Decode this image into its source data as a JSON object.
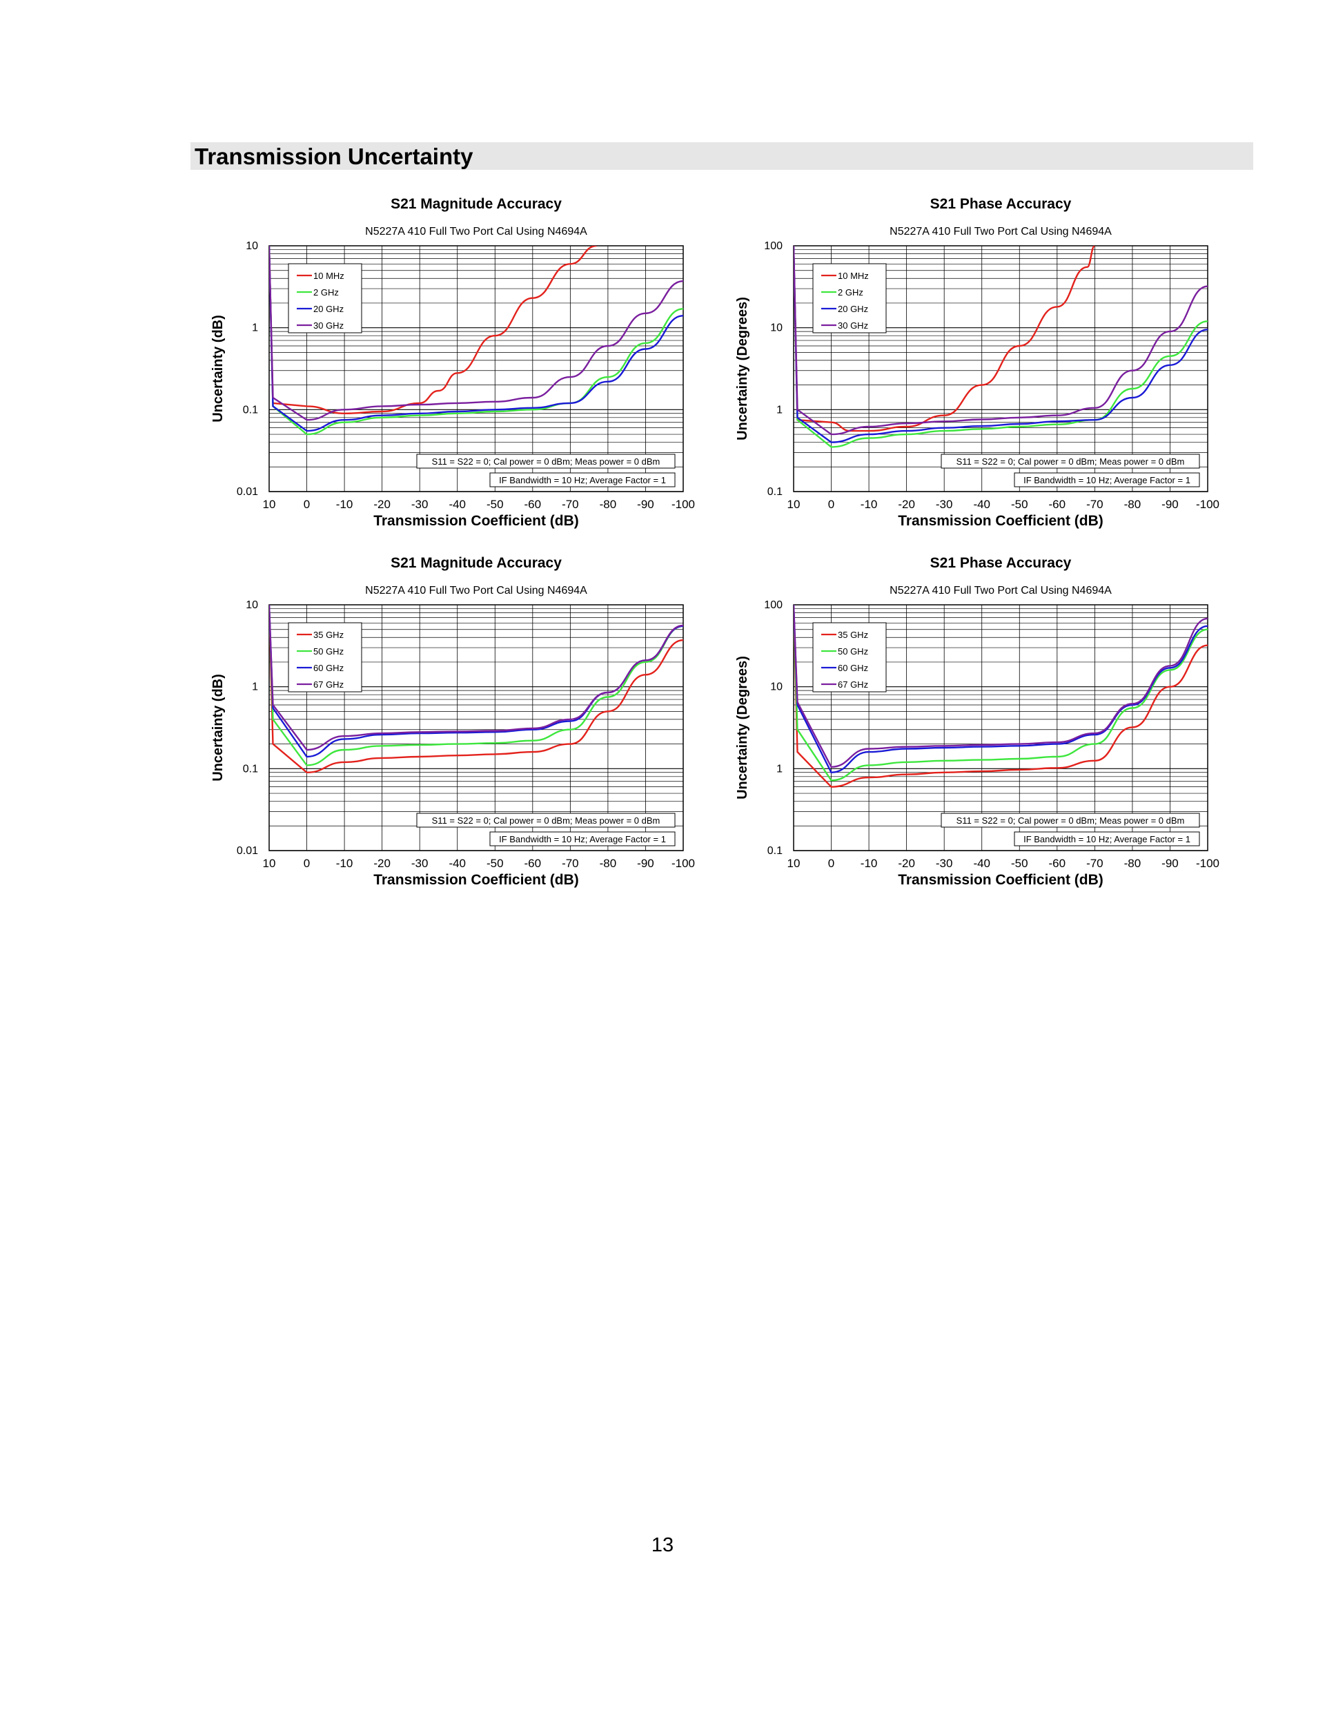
{
  "page": {
    "section_title": "Transmission Uncertainty",
    "page_number": "13"
  },
  "colors": {
    "red": "#e3221c",
    "green": "#3ee63e",
    "blue": "#1a1ad6",
    "purple": "#7a1f9e",
    "header_bg": "#e6e6e6",
    "grid": "#000000"
  },
  "chart_data": [
    {
      "type": "line",
      "title": "S21 Magnitude Accuracy",
      "subtitle": "N5227A 410 Full Two Port Cal Using N4694A",
      "xlabel": "Transmission Coefficient (dB)",
      "ylabel": "Uncertainty (dB)",
      "y_scale": "log",
      "xlim": [
        10,
        -100
      ],
      "ylim": [
        0.01,
        10
      ],
      "x_ticks": [
        "10",
        "0",
        "-10",
        "-20",
        "-30",
        "-40",
        "-50",
        "-60",
        "-70",
        "-80",
        "-90",
        "-100"
      ],
      "y_ticks": [
        "0.01",
        "0.1",
        "1",
        "10"
      ],
      "grid": true,
      "legend_position": "top-left",
      "notes": [
        "S11 = S22 = 0; Cal power = 0 dBm; Meas power = 0 dBm",
        "IF Bandwidth = 10 Hz; Average Factor = 1"
      ],
      "series": [
        {
          "name": "10 MHz",
          "color": "red",
          "x": [
            10,
            9,
            0,
            -10,
            -20,
            -30,
            -35,
            -40,
            -50,
            -60,
            -70,
            -77
          ],
          "y": [
            10,
            0.12,
            0.11,
            0.09,
            0.095,
            0.12,
            0.17,
            0.28,
            0.8,
            2.3,
            6.0,
            10
          ]
        },
        {
          "name": "2 GHz",
          "color": "green",
          "x": [
            10,
            9,
            0,
            -10,
            -20,
            -30,
            -40,
            -50,
            -60,
            -70,
            -80,
            -90,
            -100
          ],
          "y": [
            10,
            0.11,
            0.05,
            0.07,
            0.08,
            0.085,
            0.09,
            0.095,
            0.1,
            0.12,
            0.25,
            0.65,
            1.7
          ]
        },
        {
          "name": "20 GHz",
          "color": "blue",
          "x": [
            10,
            9,
            0,
            -10,
            -20,
            -30,
            -40,
            -50,
            -60,
            -70,
            -80,
            -90,
            -100
          ],
          "y": [
            10,
            0.11,
            0.055,
            0.075,
            0.085,
            0.09,
            0.095,
            0.1,
            0.105,
            0.12,
            0.22,
            0.55,
            1.4
          ]
        },
        {
          "name": "30 GHz",
          "color": "purple",
          "x": [
            10,
            9,
            0,
            -10,
            -20,
            -30,
            -40,
            -50,
            -60,
            -70,
            -80,
            -90,
            -100
          ],
          "y": [
            10,
            0.14,
            0.075,
            0.1,
            0.11,
            0.115,
            0.12,
            0.125,
            0.14,
            0.25,
            0.6,
            1.5,
            3.7
          ]
        }
      ]
    },
    {
      "type": "line",
      "title": "S21 Phase Accuracy",
      "subtitle": "N5227A 410 Full Two Port Cal Using N4694A",
      "xlabel": "Transmission Coefficient (dB)",
      "ylabel": "Uncertainty (Degrees)",
      "y_scale": "log",
      "xlim": [
        10,
        -100
      ],
      "ylim": [
        0.1,
        100
      ],
      "x_ticks": [
        "10",
        "0",
        "-10",
        "-20",
        "-30",
        "-40",
        "-50",
        "-60",
        "-70",
        "-80",
        "-90",
        "-100"
      ],
      "y_ticks": [
        "0.1",
        "1",
        "10",
        "100"
      ],
      "grid": true,
      "legend_position": "top-left",
      "notes": [
        "S11 = S22 = 0; Cal power = 0 dBm; Meas power = 0 dBm",
        "IF Bandwidth = 10 Hz; Average Factor = 1"
      ],
      "series": [
        {
          "name": "10 MHz",
          "color": "red",
          "x": [
            10,
            9,
            0,
            -5,
            -10,
            -20,
            -30,
            -40,
            -50,
            -60,
            -68,
            -70
          ],
          "y": [
            100,
            0.75,
            0.7,
            0.55,
            0.55,
            0.62,
            0.85,
            2.0,
            6.0,
            18,
            55,
            100
          ]
        },
        {
          "name": "2 GHz",
          "color": "green",
          "x": [
            10,
            9,
            0,
            -10,
            -20,
            -30,
            -40,
            -50,
            -60,
            -70,
            -80,
            -90,
            -100
          ],
          "y": [
            100,
            0.75,
            0.35,
            0.45,
            0.5,
            0.55,
            0.58,
            0.62,
            0.66,
            0.75,
            1.8,
            4.5,
            12
          ]
        },
        {
          "name": "20 GHz",
          "color": "blue",
          "x": [
            10,
            9,
            0,
            -10,
            -20,
            -30,
            -40,
            -50,
            -60,
            -70,
            -80,
            -90,
            -100
          ],
          "y": [
            100,
            0.8,
            0.4,
            0.5,
            0.55,
            0.6,
            0.63,
            0.67,
            0.72,
            0.75,
            1.4,
            3.5,
            9.5
          ]
        },
        {
          "name": "30 GHz",
          "color": "purple",
          "x": [
            10,
            9,
            0,
            -10,
            -20,
            -30,
            -40,
            -50,
            -60,
            -70,
            -80,
            -90,
            -100
          ],
          "y": [
            100,
            1.0,
            0.5,
            0.62,
            0.68,
            0.72,
            0.76,
            0.8,
            0.85,
            1.05,
            3.0,
            9.0,
            32
          ]
        }
      ]
    },
    {
      "type": "line",
      "title": "S21 Magnitude Accuracy",
      "subtitle": "N5227A 410 Full Two Port Cal Using N4694A",
      "xlabel": "Transmission Coefficient (dB)",
      "ylabel": "Uncertainty (dB)",
      "y_scale": "log",
      "xlim": [
        10,
        -100
      ],
      "ylim": [
        0.01,
        10
      ],
      "x_ticks": [
        "10",
        "0",
        "-10",
        "-20",
        "-30",
        "-40",
        "-50",
        "-60",
        "-70",
        "-80",
        "-90",
        "-100"
      ],
      "y_ticks": [
        "0.01",
        "0.1",
        "1",
        "10"
      ],
      "grid": true,
      "legend_position": "top-left",
      "notes": [
        "S11 = S22 = 0; Cal power = 0 dBm; Meas power = 0 dBm",
        "IF Bandwidth = 10 Hz; Average Factor = 1"
      ],
      "series": [
        {
          "name": "35 GHz",
          "color": "red",
          "x": [
            10,
            9,
            0,
            -10,
            -20,
            -30,
            -40,
            -50,
            -60,
            -70,
            -80,
            -90,
            -100
          ],
          "y": [
            10,
            0.2,
            0.09,
            0.12,
            0.135,
            0.14,
            0.145,
            0.15,
            0.16,
            0.2,
            0.5,
            1.4,
            3.7
          ]
        },
        {
          "name": "50 GHz",
          "color": "green",
          "x": [
            10,
            9,
            0,
            -10,
            -20,
            -30,
            -40,
            -50,
            -60,
            -70,
            -80,
            -90,
            -100
          ],
          "y": [
            10,
            0.4,
            0.11,
            0.17,
            0.19,
            0.195,
            0.2,
            0.205,
            0.22,
            0.3,
            0.75,
            2.0,
            5.5
          ]
        },
        {
          "name": "60 GHz",
          "color": "blue",
          "x": [
            10,
            9,
            0,
            -10,
            -20,
            -30,
            -40,
            -50,
            -60,
            -70,
            -80,
            -90,
            -100
          ],
          "y": [
            10,
            0.55,
            0.14,
            0.23,
            0.26,
            0.27,
            0.275,
            0.28,
            0.3,
            0.38,
            0.85,
            2.1,
            5.5
          ]
        },
        {
          "name": "67 GHz",
          "color": "purple",
          "x": [
            10,
            9,
            0,
            -10,
            -20,
            -30,
            -40,
            -50,
            -60,
            -70,
            -80,
            -90,
            -100
          ],
          "y": [
            10,
            0.6,
            0.17,
            0.25,
            0.27,
            0.28,
            0.285,
            0.29,
            0.31,
            0.4,
            0.85,
            2.1,
            5.6
          ]
        }
      ]
    },
    {
      "type": "line",
      "title": "S21 Phase Accuracy",
      "subtitle": "N5227A 410 Full Two Port Cal Using N4694A",
      "xlabel": "Transmission Coefficient (dB)",
      "ylabel": "Uncertainty (Degrees)",
      "y_scale": "log",
      "xlim": [
        10,
        -100
      ],
      "ylim": [
        0.1,
        100
      ],
      "x_ticks": [
        "10",
        "0",
        "-10",
        "-20",
        "-30",
        "-40",
        "-50",
        "-60",
        "-70",
        "-80",
        "-90",
        "-100"
      ],
      "y_ticks": [
        "0.1",
        "1",
        "10",
        "100"
      ],
      "grid": true,
      "legend_position": "top-left",
      "notes": [
        "S11 = S22 = 0; Cal power = 0 dBm; Meas power = 0 dBm",
        "IF Bandwidth = 10 Hz; Average Factor = 1"
      ],
      "series": [
        {
          "name": "35 GHz",
          "color": "red",
          "x": [
            10,
            9,
            0,
            -10,
            -20,
            -30,
            -40,
            -50,
            -60,
            -70,
            -80,
            -90,
            -100
          ],
          "y": [
            100,
            1.6,
            0.6,
            0.78,
            0.85,
            0.9,
            0.93,
            0.97,
            1.02,
            1.25,
            3.2,
            10,
            32
          ]
        },
        {
          "name": "50 GHz",
          "color": "green",
          "x": [
            10,
            9,
            0,
            -10,
            -20,
            -30,
            -40,
            -50,
            -60,
            -70,
            -80,
            -90,
            -100
          ],
          "y": [
            100,
            3.0,
            0.72,
            1.1,
            1.2,
            1.25,
            1.28,
            1.32,
            1.4,
            2.0,
            5.5,
            16,
            50
          ]
        },
        {
          "name": "60 GHz",
          "color": "blue",
          "x": [
            10,
            9,
            0,
            -10,
            -20,
            -30,
            -40,
            -50,
            -60,
            -70,
            -80,
            -90,
            -100
          ],
          "y": [
            100,
            6.0,
            0.9,
            1.6,
            1.75,
            1.8,
            1.85,
            1.9,
            2.0,
            2.6,
            6.0,
            17,
            55
          ]
        },
        {
          "name": "67 GHz",
          "color": "purple",
          "x": [
            10,
            9,
            0,
            -10,
            -20,
            -30,
            -40,
            -50,
            -60,
            -70,
            -80,
            -90,
            -100
          ],
          "y": [
            100,
            6.5,
            1.05,
            1.75,
            1.85,
            1.9,
            1.95,
            2.0,
            2.1,
            2.7,
            6.2,
            18,
            68
          ]
        }
      ]
    }
  ]
}
